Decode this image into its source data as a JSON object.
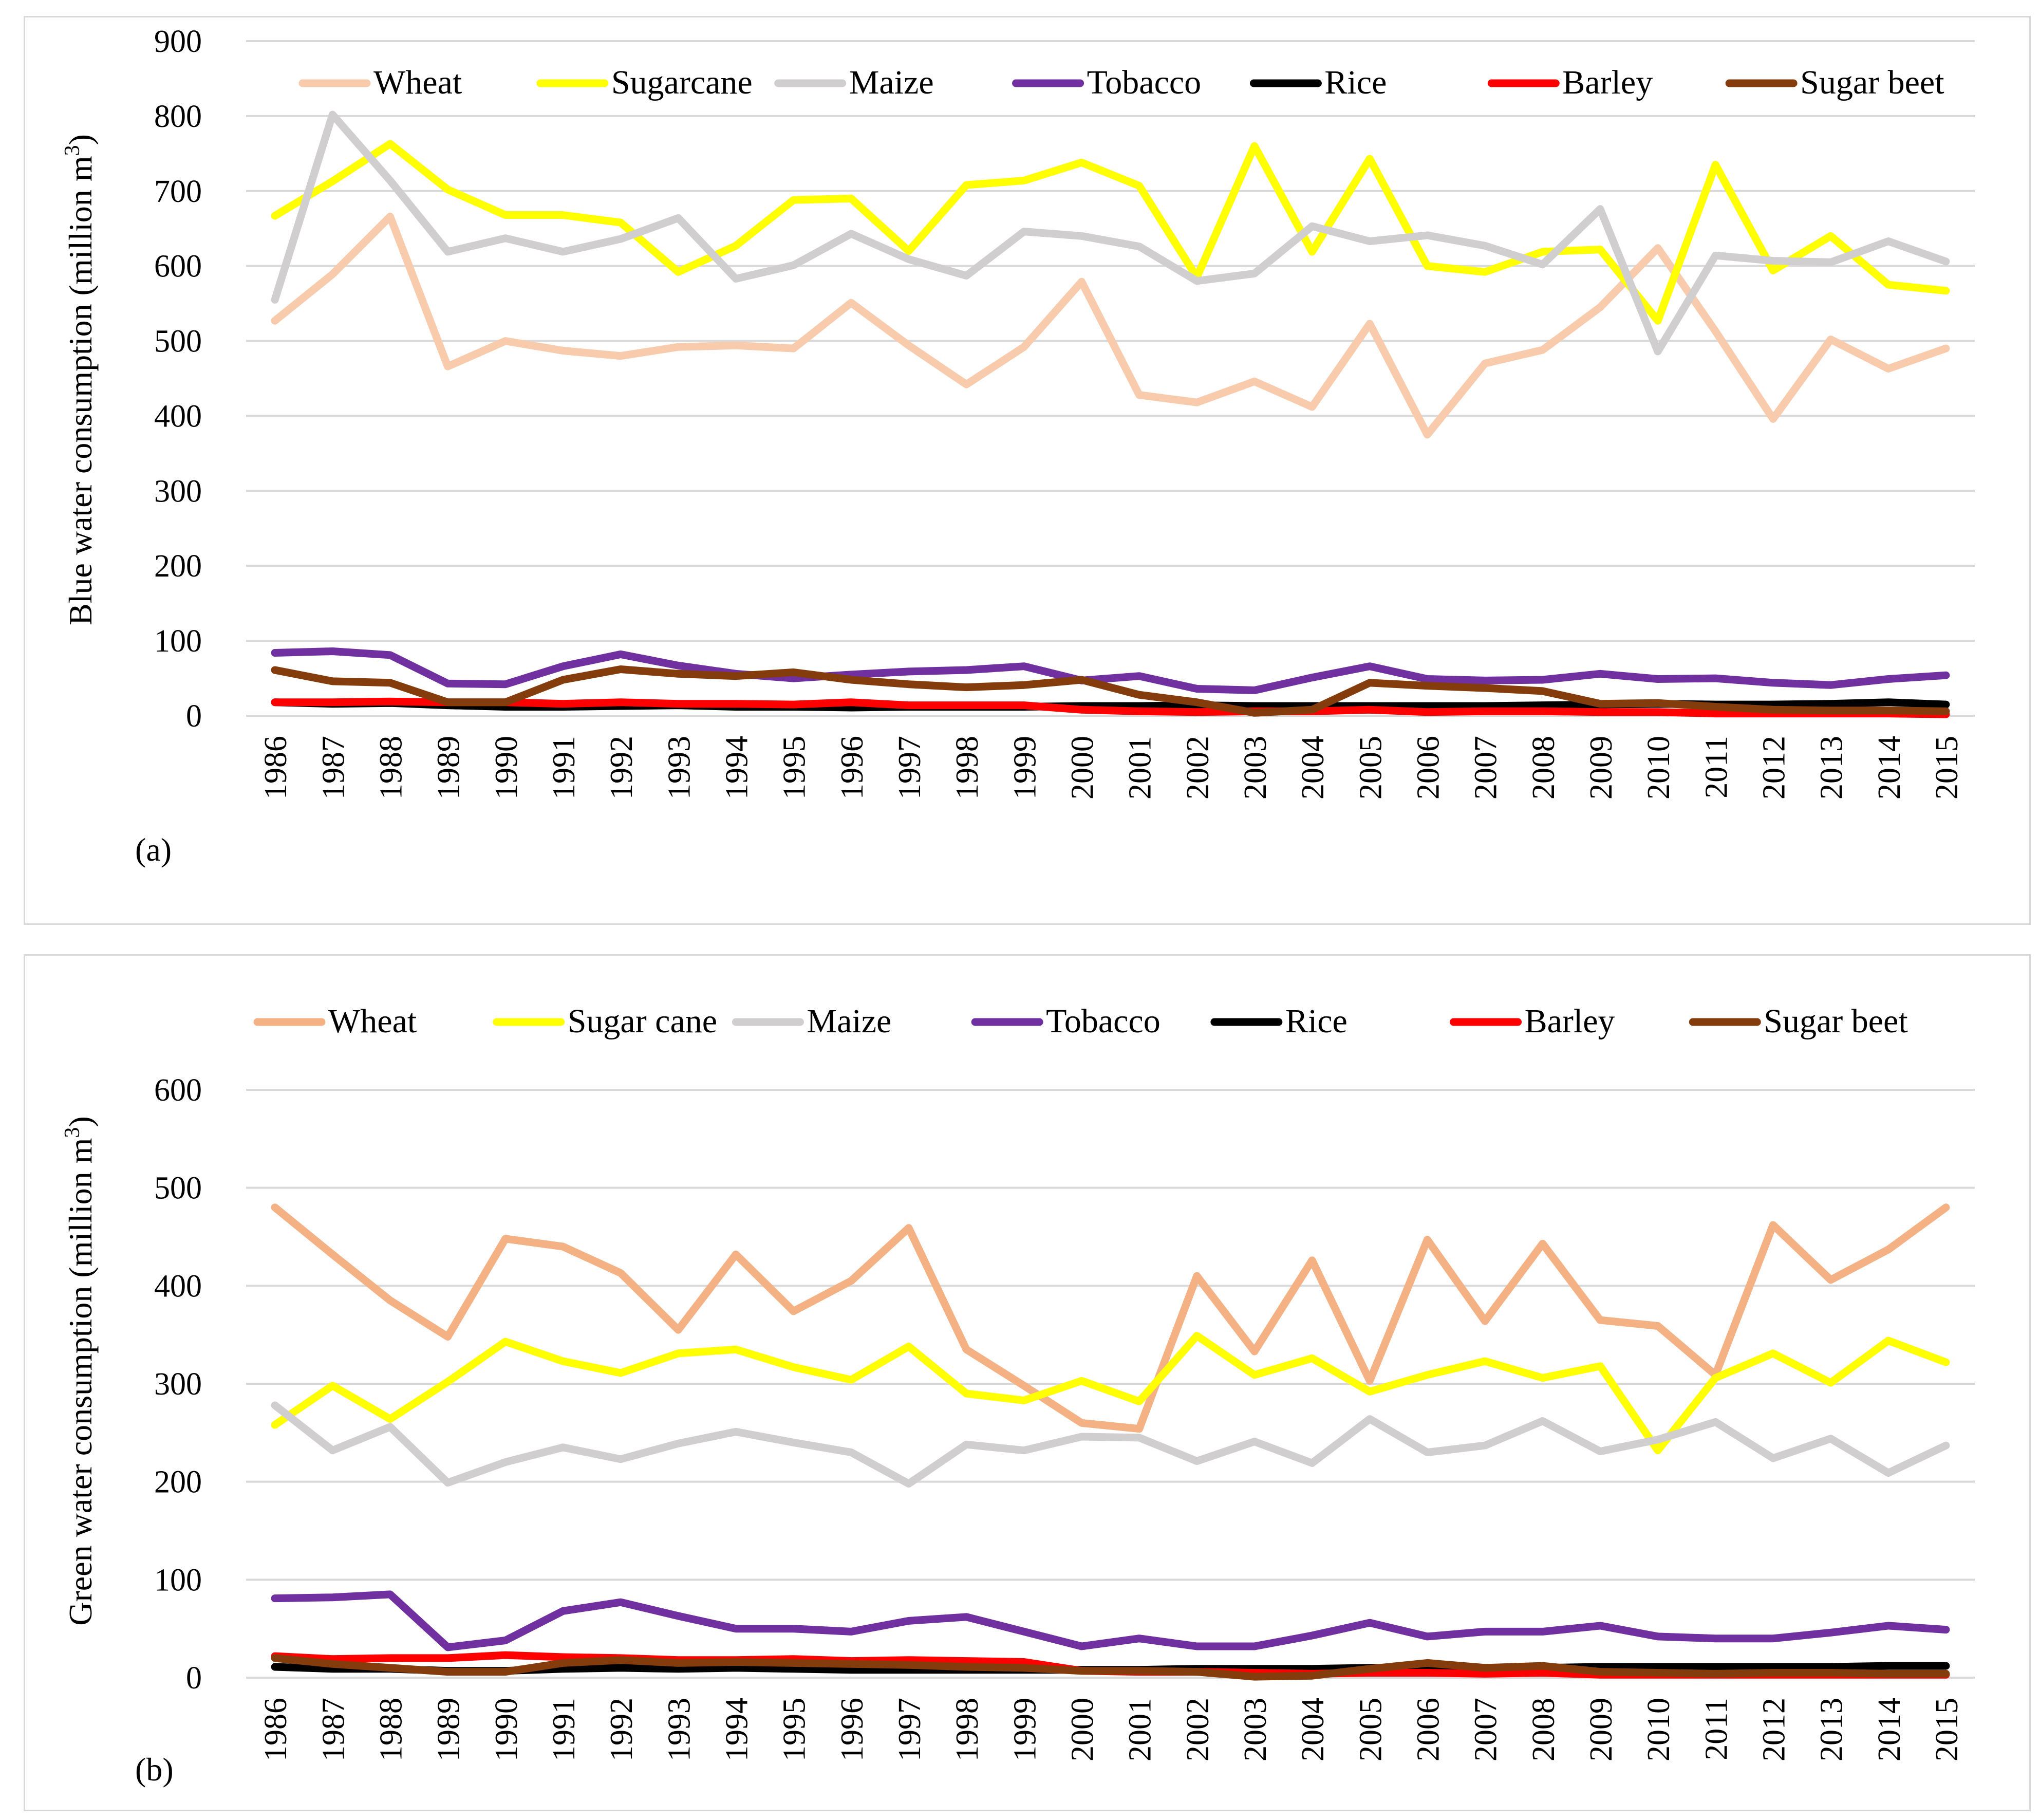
{
  "chart_data": [
    {
      "id": "a",
      "type": "line",
      "panel_label": "(a)",
      "ylabel": "Blue water consumption (million m³)",
      "ylabel_main": "Blue water consumption (million m",
      "ylabel_sup": "3",
      "ylabel_end": ")",
      "ylim": [
        0,
        900
      ],
      "yticks": [
        0,
        100,
        200,
        300,
        400,
        500,
        600,
        700,
        800,
        900
      ],
      "grid": true,
      "legend": "top",
      "categories": [
        "1986",
        "1987",
        "1988",
        "1989",
        "1990",
        "1991",
        "1992",
        "1993",
        "1994",
        "1995",
        "1996",
        "1997",
        "1998",
        "1999",
        "2000",
        "2001",
        "2002",
        "2003",
        "2004",
        "2005",
        "2006",
        "2007",
        "2008",
        "2009",
        "2010",
        "2011",
        "2012",
        "2013",
        "2014",
        "2015"
      ],
      "series": [
        {
          "name": "Wheat",
          "color": "#F8CBAD",
          "values": [
            527,
            589,
            666,
            466,
            500,
            487,
            480,
            492,
            494,
            490,
            551,
            494,
            442,
            492,
            579,
            428,
            418,
            446,
            412,
            523,
            375,
            470,
            488,
            545,
            624,
            513,
            396,
            502,
            463,
            490
          ]
        },
        {
          "name": "Sugarcane",
          "color": "#FFFF00",
          "values": [
            667,
            713,
            763,
            702,
            668,
            668,
            658,
            592,
            627,
            688,
            690,
            620,
            708,
            714,
            738,
            707,
            585,
            760,
            619,
            743,
            600,
            592,
            619,
            622,
            527,
            735,
            594,
            640,
            575,
            567
          ]
        },
        {
          "name": "Maize",
          "color": "#D0CECE",
          "values": [
            555,
            802,
            714,
            619,
            637,
            619,
            636,
            664,
            583,
            601,
            643,
            609,
            587,
            646,
            640,
            626,
            580,
            590,
            653,
            633,
            641,
            627,
            602,
            676,
            486,
            614,
            607,
            605,
            633,
            606
          ]
        },
        {
          "name": "Tobacco",
          "color": "#7030A0",
          "values": [
            84,
            86,
            81,
            43,
            42,
            66,
            82,
            67,
            56,
            50,
            55,
            59,
            61,
            66,
            47,
            53,
            36,
            34,
            51,
            66,
            49,
            47,
            48,
            56,
            49,
            50,
            44,
            41,
            49,
            54
          ]
        },
        {
          "name": "Rice",
          "color": "#000000",
          "values": [
            18,
            16,
            17,
            14,
            12,
            12,
            13,
            14,
            12,
            12,
            11,
            12,
            12,
            12,
            13,
            13,
            14,
            13,
            13,
            13,
            13,
            13,
            14,
            15,
            16,
            15,
            15,
            16,
            18,
            15
          ]
        },
        {
          "name": "Barley",
          "color": "#FF0000",
          "values": [
            18,
            18,
            19,
            18,
            18,
            16,
            18,
            16,
            16,
            15,
            18,
            14,
            14,
            14,
            8,
            6,
            5,
            6,
            6,
            8,
            5,
            6,
            6,
            5,
            5,
            3,
            3,
            3,
            3,
            2
          ]
        },
        {
          "name": "Sugar beet",
          "color": "#843C0C",
          "values": [
            61,
            46,
            44,
            18,
            18,
            48,
            62,
            56,
            53,
            58,
            48,
            42,
            38,
            41,
            48,
            28,
            18,
            4,
            8,
            44,
            40,
            37,
            33,
            16,
            17,
            12,
            8,
            7,
            7,
            6
          ]
        }
      ]
    },
    {
      "id": "b",
      "type": "line",
      "panel_label": "(b)",
      "ylabel": "Green water consumption (million m³)",
      "ylabel_main": "Green water consumption (million m",
      "ylabel_sup": "3",
      "ylabel_end": ")",
      "ylim": [
        0,
        600
      ],
      "yticks": [
        0,
        100,
        200,
        300,
        400,
        500,
        600
      ],
      "grid": true,
      "legend": "top",
      "categories": [
        "1986",
        "1987",
        "1988",
        "1989",
        "1990",
        "1991",
        "1992",
        "1993",
        "1994",
        "1995",
        "1996",
        "1997",
        "1998",
        "1999",
        "2000",
        "2001",
        "2002",
        "2003",
        "2004",
        "2005",
        "2006",
        "2007",
        "2008",
        "2009",
        "2010",
        "2011",
        "2012",
        "2013",
        "2014",
        "2015"
      ],
      "series": [
        {
          "name": "Wheat",
          "color": "#F4B183",
          "values": [
            480,
            432,
            385,
            348,
            448,
            440,
            413,
            355,
            432,
            374,
            405,
            459,
            335,
            298,
            260,
            254,
            410,
            333,
            426,
            303,
            447,
            364,
            443,
            365,
            359,
            309,
            462,
            406,
            437,
            480
          ]
        },
        {
          "name": "Sugar cane",
          "color": "#FFFF00",
          "values": [
            258,
            298,
            264,
            302,
            343,
            323,
            311,
            331,
            335,
            317,
            304,
            338,
            290,
            283,
            303,
            282,
            349,
            309,
            326,
            292,
            309,
            323,
            306,
            318,
            232,
            306,
            331,
            301,
            344,
            322
          ]
        },
        {
          "name": "Maize",
          "color": "#D0CECE",
          "values": [
            278,
            232,
            256,
            199,
            220,
            235,
            223,
            239,
            251,
            240,
            230,
            198,
            238,
            232,
            246,
            245,
            221,
            241,
            219,
            264,
            230,
            237,
            262,
            231,
            243,
            261,
            224,
            244,
            209,
            237
          ]
        },
        {
          "name": "Tobacco",
          "color": "#7030A0",
          "values": [
            81,
            82,
            85,
            31,
            38,
            68,
            77,
            63,
            50,
            50,
            47,
            58,
            62,
            47,
            32,
            40,
            32,
            32,
            43,
            56,
            42,
            47,
            47,
            53,
            42,
            40,
            40,
            46,
            53,
            49
          ]
        },
        {
          "name": "Rice",
          "color": "#000000",
          "values": [
            11,
            9,
            9,
            7,
            7,
            9,
            10,
            9,
            10,
            9,
            8,
            8,
            8,
            8,
            8,
            8,
            9,
            9,
            9,
            10,
            10,
            10,
            10,
            11,
            11,
            11,
            11,
            11,
            12,
            12
          ]
        },
        {
          "name": "Barley",
          "color": "#FF0000",
          "values": [
            22,
            19,
            20,
            20,
            23,
            21,
            20,
            18,
            18,
            19,
            17,
            18,
            17,
            16,
            7,
            6,
            6,
            5,
            4,
            5,
            5,
            4,
            5,
            3,
            3,
            3,
            3,
            3,
            3,
            3
          ]
        },
        {
          "name": "Sugar beet",
          "color": "#843C0C",
          "values": [
            20,
            14,
            10,
            6,
            6,
            15,
            18,
            15,
            16,
            15,
            14,
            13,
            11,
            10,
            7,
            7,
            6,
            1,
            2,
            9,
            15,
            10,
            12,
            6,
            5,
            4,
            5,
            5,
            4,
            4
          ]
        }
      ]
    }
  ]
}
